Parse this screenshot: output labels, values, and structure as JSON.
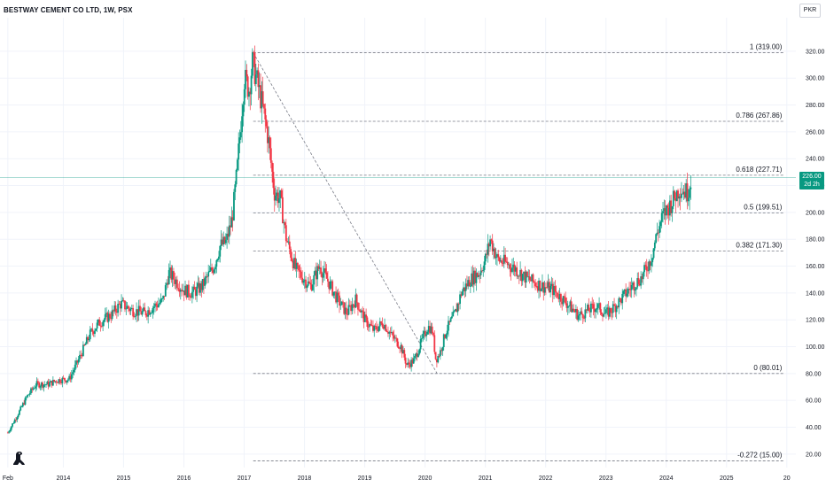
{
  "header": {
    "title": "BESTWAY CEMENT CO LTD, 1W, PSX",
    "currency": "PKR"
  },
  "price_badge": {
    "price": "226.00",
    "countdown": "2d 2h",
    "value": 226,
    "color": "#089981"
  },
  "colors": {
    "up": "#089981",
    "down": "#f23645",
    "fib_line": "#787b86",
    "grid": "#f0f3fa",
    "current_price_line": "#089981"
  },
  "icons": {
    "logo": "tradingview-dino-icon"
  },
  "chart_data": {
    "type": "candlestick",
    "title": "BESTWAY CEMENT CO LTD, 1W, PSX",
    "xlabel": "",
    "ylabel": "",
    "x_ticks": [
      "Feb",
      "2014",
      "2015",
      "2016",
      "2017",
      "2018",
      "2019",
      "2020",
      "2021",
      "2022",
      "2023",
      "2024",
      "2025",
      "20"
    ],
    "x_tick_years": [
      2013.08,
      2014,
      2015,
      2016,
      2017,
      2018,
      2019,
      2020,
      2021,
      2022,
      2023,
      2024,
      2025,
      2026
    ],
    "y_ticks": [
      20,
      40,
      60,
      80,
      100,
      120,
      140,
      160,
      180,
      200,
      220,
      240,
      260,
      280,
      300,
      320
    ],
    "ylim": [
      10,
      345
    ],
    "xlim": [
      2012.95,
      2026.15
    ],
    "grid": true,
    "series": [
      {
        "points": [
          [
            2013.08,
            36
          ],
          [
            2013.25,
            50
          ],
          [
            2013.4,
            63
          ],
          [
            2013.55,
            72
          ],
          [
            2013.75,
            72
          ],
          [
            2013.9,
            75
          ],
          [
            2014.1,
            76
          ],
          [
            2014.25,
            90
          ],
          [
            2014.45,
            110
          ],
          [
            2014.6,
            118
          ],
          [
            2014.8,
            124
          ],
          [
            2014.95,
            132
          ],
          [
            2015.15,
            127
          ],
          [
            2015.35,
            125
          ],
          [
            2015.5,
            130
          ],
          [
            2015.65,
            134
          ],
          [
            2015.75,
            155
          ],
          [
            2015.85,
            150
          ],
          [
            2016.0,
            142
          ],
          [
            2016.15,
            140
          ],
          [
            2016.3,
            145
          ],
          [
            2016.5,
            160
          ],
          [
            2016.6,
            175
          ],
          [
            2016.7,
            178
          ],
          [
            2016.8,
            195
          ],
          [
            2016.88,
            230
          ],
          [
            2016.95,
            270
          ],
          [
            2017.0,
            300
          ],
          [
            2017.08,
            292
          ],
          [
            2017.14,
            312
          ],
          [
            2017.2,
            300
          ],
          [
            2017.3,
            280
          ],
          [
            2017.4,
            255
          ],
          [
            2017.5,
            215
          ],
          [
            2017.6,
            210
          ],
          [
            2017.7,
            180
          ],
          [
            2017.85,
            158
          ],
          [
            2018.0,
            150
          ],
          [
            2018.1,
            145
          ],
          [
            2018.25,
            160
          ],
          [
            2018.4,
            148
          ],
          [
            2018.55,
            135
          ],
          [
            2018.7,
            125
          ],
          [
            2018.85,
            135
          ],
          [
            2019.0,
            120
          ],
          [
            2019.15,
            112
          ],
          [
            2019.3,
            118
          ],
          [
            2019.45,
            108
          ],
          [
            2019.6,
            100
          ],
          [
            2019.7,
            86
          ],
          [
            2019.82,
            90
          ],
          [
            2019.95,
            105
          ],
          [
            2020.05,
            115
          ],
          [
            2020.12,
            112
          ],
          [
            2020.18,
            90
          ],
          [
            2020.25,
            96
          ],
          [
            2020.35,
            112
          ],
          [
            2020.5,
            125
          ],
          [
            2020.6,
            140
          ],
          [
            2020.75,
            150
          ],
          [
            2020.9,
            155
          ],
          [
            2021.0,
            165
          ],
          [
            2021.08,
            180
          ],
          [
            2021.2,
            165
          ],
          [
            2021.35,
            162
          ],
          [
            2021.5,
            158
          ],
          [
            2021.65,
            152
          ],
          [
            2021.8,
            148
          ],
          [
            2021.95,
            145
          ],
          [
            2022.1,
            143
          ],
          [
            2022.25,
            137
          ],
          [
            2022.4,
            130
          ],
          [
            2022.55,
            123
          ],
          [
            2022.7,
            127
          ],
          [
            2022.85,
            130
          ],
          [
            2023.0,
            124
          ],
          [
            2023.15,
            130
          ],
          [
            2023.3,
            138
          ],
          [
            2023.45,
            146
          ],
          [
            2023.6,
            152
          ],
          [
            2023.75,
            166
          ],
          [
            2023.85,
            185
          ],
          [
            2023.95,
            198
          ],
          [
            2024.1,
            208
          ],
          [
            2024.22,
            218
          ],
          [
            2024.35,
            215
          ],
          [
            2024.42,
            226
          ]
        ]
      }
    ],
    "fibonacci": {
      "levels": [
        {
          "ratio": "1",
          "price": 319.0,
          "label": "1 (319.00)"
        },
        {
          "ratio": "0.786",
          "price": 267.86,
          "label": "0.786 (267.86)"
        },
        {
          "ratio": "0.618",
          "price": 227.71,
          "label": "0.618 (227.71)"
        },
        {
          "ratio": "0.5",
          "price": 199.51,
          "label": "0.5 (199.51)"
        },
        {
          "ratio": "0.382",
          "price": 171.3,
          "label": "0.382 (171.30)"
        },
        {
          "ratio": "0",
          "price": 80.01,
          "label": "0 (80.01)"
        },
        {
          "ratio": "-0.272",
          "price": 15.0,
          "label": "-0.272 (15.00)"
        }
      ],
      "x_start": 2017.15,
      "x_end": 2025.95,
      "trend_from": [
        2017.15,
        319.0
      ],
      "trend_to": [
        2020.2,
        80.01
      ]
    },
    "current_price": 226.0
  }
}
